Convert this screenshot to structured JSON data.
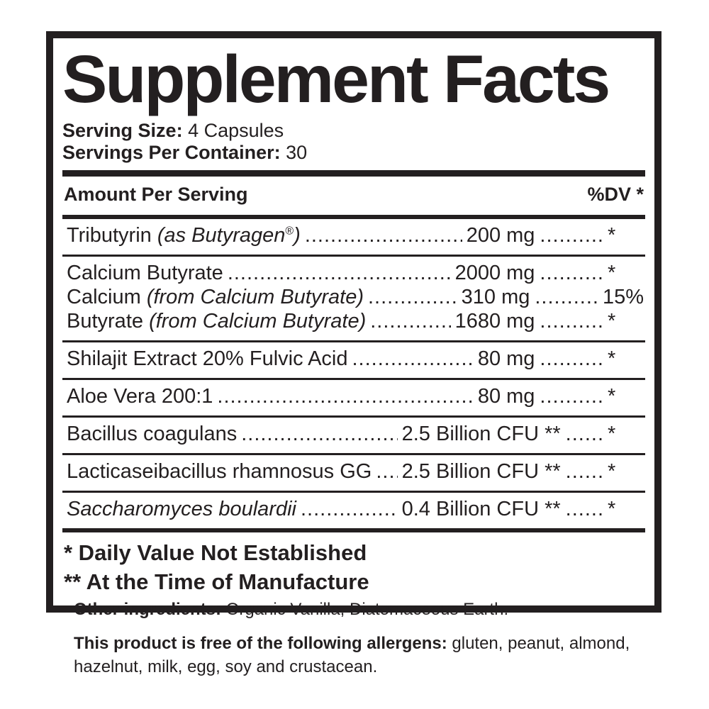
{
  "colors": {
    "ink": "#231f20",
    "bg": "#ffffff"
  },
  "title": "Supplement Facts",
  "serving": {
    "size_label": "Serving Size:",
    "size_value": " 4 Capsules",
    "per_container_label": "Servings Per Container:",
    "per_container_value": " 30"
  },
  "header": {
    "amount_label": "Amount Per Serving",
    "dv_label": "%DV *"
  },
  "leader_dots": "..........................................................................................................................",
  "groups": [
    {
      "lines": [
        {
          "parts": [
            {
              "t": "Tributyrin "
            },
            {
              "t": "(as Butyragen",
              "i": true
            },
            {
              "t": "®",
              "sup": true
            },
            {
              "t": ")",
              "i": true
            }
          ],
          "amount": "200 mg",
          "dots2": "..........",
          "dv": "*"
        }
      ]
    },
    {
      "lines": [
        {
          "parts": [
            {
              "t": "Calcium Butyrate"
            }
          ],
          "amount": "2000 mg",
          "dots2": "..........",
          "dv": "*"
        },
        {
          "parts": [
            {
              "t": "Calcium "
            },
            {
              "t": "(from Calcium Butyrate)",
              "i": true
            }
          ],
          "amount": "310 mg",
          "dots2": "..........",
          "dv": "15%"
        },
        {
          "parts": [
            {
              "t": "Butyrate "
            },
            {
              "t": "(from Calcium Butyrate)",
              "i": true
            }
          ],
          "amount": "1680 mg",
          "dots2": "..........",
          "dv": "*"
        }
      ]
    },
    {
      "lines": [
        {
          "parts": [
            {
              "t": "Shilajit Extract 20% Fulvic Acid"
            }
          ],
          "amount": "80 mg",
          "dots2": "..........",
          "dv": "*"
        }
      ]
    },
    {
      "lines": [
        {
          "parts": [
            {
              "t": "Aloe Vera 200:1"
            }
          ],
          "amount": "80 mg",
          "dots2": "..........",
          "dv": "*"
        }
      ]
    },
    {
      "lines": [
        {
          "parts": [
            {
              "t": "Bacillus coagulans"
            }
          ],
          "amount": "2.5 Billion CFU **",
          "dots2": "......",
          "dv": "*"
        }
      ]
    },
    {
      "lines": [
        {
          "parts": [
            {
              "t": "Lacticaseibacillus rhamnosus GG"
            }
          ],
          "amount": "2.5 Billion CFU **",
          "dots2": "......",
          "dv": "*"
        }
      ]
    },
    {
      "lines": [
        {
          "parts": [
            {
              "t": "Saccharomyces boulardii",
              "i": true
            }
          ],
          "amount": "0.4 Billion CFU **",
          "dots2": "......",
          "dv": "*"
        }
      ]
    }
  ],
  "footnotes": [
    "* Daily Value Not Established",
    "** At the Time of Manufacture"
  ],
  "other_ingredients": {
    "label": "Other ingredients:",
    "text": " Organic Vanilla, Diatomaceous Earth."
  },
  "allergens": {
    "label": "This product is free of the following allergens:",
    "text": " gluten, peanut, almond, hazelnut, milk, egg, soy and crustacean."
  }
}
